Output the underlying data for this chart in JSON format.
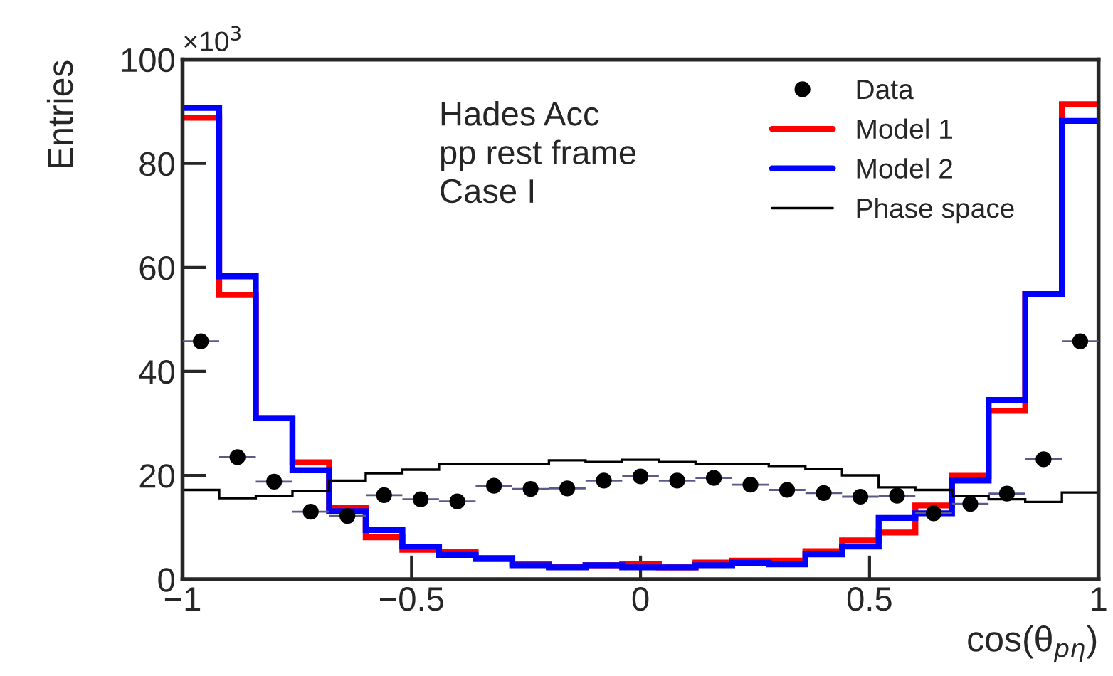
{
  "chart_data": {
    "type": "histogram",
    "xlabel": "cos(θ$_{pη}$)",
    "ylabel": "Entries",
    "bins": [
      -1,
      -0.92,
      -0.84,
      -0.76,
      -0.68,
      -0.6,
      -0.52,
      -0.44,
      -0.36,
      -0.28,
      -0.2,
      -0.12,
      -0.04,
      0.04,
      0.12,
      0.2,
      0.28,
      0.36,
      0.44,
      0.52,
      0.6,
      0.68,
      0.76,
      0.84,
      0.92,
      1
    ],
    "series": [
      {
        "name": "Data",
        "type": "scatter",
        "color": "#000000",
        "marker": "circle",
        "x": [
          -0.96,
          -0.88,
          -0.8,
          -0.72,
          -0.64,
          -0.56,
          -0.48,
          -0.4,
          -0.32,
          -0.24,
          -0.16,
          -0.08,
          0,
          0.08,
          0.16,
          0.24,
          0.32,
          0.4,
          0.48,
          0.56,
          0.64,
          0.72,
          0.8,
          0.88,
          0.96
        ],
        "values": [
          45.8,
          23.5,
          18.8,
          13.0,
          12.2,
          16.2,
          15.4,
          15.0,
          18.0,
          17.4,
          17.5,
          19.0,
          19.8,
          19.0,
          19.5,
          18.2,
          17.2,
          16.6,
          15.9,
          16.1,
          12.7,
          14.5,
          16.5,
          23.1,
          45.8
        ],
        "xerrors": [
          0.04,
          0.04,
          0.04,
          0.04,
          0.04,
          0.04,
          0.04,
          0.04,
          0.04,
          0.04,
          0.04,
          0.04,
          0.04,
          0.04,
          0.04,
          0.04,
          0.04,
          0.04,
          0.04,
          0.04,
          0.04,
          0.04,
          0.04,
          0.04,
          0.04
        ]
      },
      {
        "name": "Model 1",
        "type": "histogram",
        "color": "#ff0000",
        "values": [
          88.8,
          54.7,
          31.0,
          22.5,
          13.8,
          8.1,
          5.7,
          5.2,
          4.1,
          3.0,
          2.4,
          2.7,
          3.0,
          2.3,
          3.2,
          3.6,
          3.6,
          5.4,
          7.5,
          9.0,
          14.2,
          19.9,
          32.4,
          54.9,
          91.4
        ]
      },
      {
        "name": "Model 2",
        "type": "histogram",
        "color": "#0000ff",
        "values": [
          90.7,
          58.3,
          31.0,
          21.0,
          13.1,
          9.5,
          6.3,
          4.7,
          3.9,
          2.7,
          2.3,
          2.7,
          2.3,
          2.3,
          2.7,
          3.2,
          2.9,
          4.8,
          6.3,
          11.8,
          12.7,
          19.0,
          34.5,
          54.9,
          88.2
        ]
      },
      {
        "name": "Phase space",
        "type": "histogram",
        "color": "#000000",
        "values": [
          17.2,
          15.6,
          16.0,
          17.0,
          19.0,
          20.4,
          21.1,
          22.2,
          22.2,
          22.2,
          22.9,
          22.6,
          23.0,
          22.6,
          22.2,
          22.2,
          21.8,
          21.3,
          20.0,
          17.7,
          17.2,
          16.0,
          15.4,
          14.9,
          16.7
        ]
      }
    ],
    "xlim": [
      -1,
      1
    ],
    "xticks": [
      {
        "value": -1,
        "label": "−1"
      },
      {
        "value": -0.5,
        "label": "−0.5"
      },
      0,
      0.5,
      1
    ],
    "ylim": [
      0,
      100
    ],
    "yticks": [
      0,
      20,
      40,
      60,
      80,
      100
    ],
    "annotations": [
      "×10$^{3}$",
      "Hades Acc",
      "pp rest frame",
      "Case I"
    ],
    "legend": "top right",
    "grid": false
  }
}
